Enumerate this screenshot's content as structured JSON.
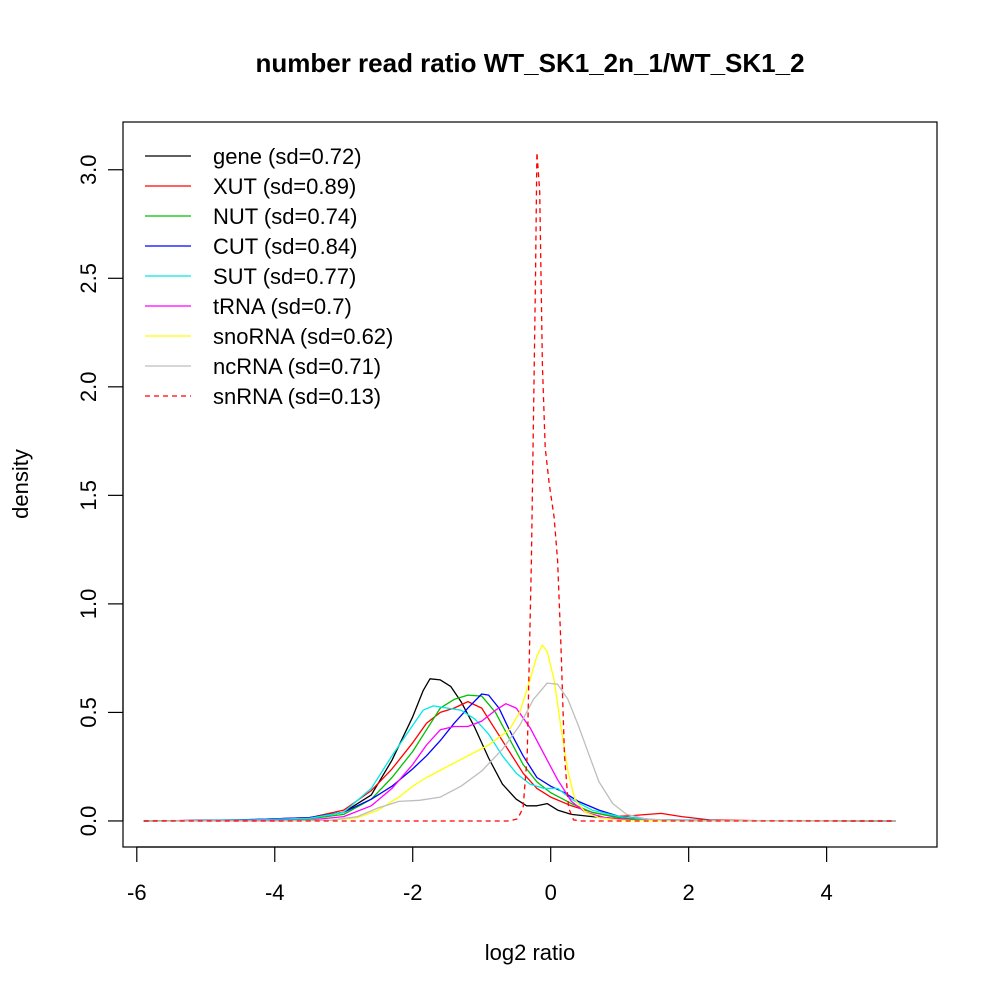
{
  "chart_data": {
    "type": "line",
    "title": "number read ratio WT_SK1_2n_1/WT_SK1_2",
    "xlabel": "log2 ratio",
    "ylabel": "density",
    "xlim": [
      -6.2,
      5.6
    ],
    "ylim": [
      -0.12,
      3.22
    ],
    "x_ticks": [
      -6,
      -4,
      -2,
      0,
      2,
      4
    ],
    "y_ticks": [
      0.0,
      0.5,
      1.0,
      1.5,
      2.0,
      2.5,
      3.0
    ],
    "x_tick_labels": [
      "-6",
      "-4",
      "-2",
      "0",
      "2",
      "4"
    ],
    "y_tick_labels": [
      "0.0",
      "0.5",
      "1.0",
      "1.5",
      "2.0",
      "2.5",
      "3.0"
    ],
    "legend_position": "top-left",
    "grid": false,
    "series": [
      {
        "name": "gene (sd=0.72)",
        "color": "#000000",
        "dash": false,
        "points": [
          [
            -5.9,
            0
          ],
          [
            -4.5,
            0.004
          ],
          [
            -3.5,
            0.015
          ],
          [
            -3.0,
            0.04
          ],
          [
            -2.6,
            0.12
          ],
          [
            -2.3,
            0.28
          ],
          [
            -2.0,
            0.48
          ],
          [
            -1.85,
            0.6
          ],
          [
            -1.75,
            0.655
          ],
          [
            -1.6,
            0.65
          ],
          [
            -1.45,
            0.62
          ],
          [
            -1.3,
            0.55
          ],
          [
            -1.1,
            0.43
          ],
          [
            -0.9,
            0.29
          ],
          [
            -0.7,
            0.17
          ],
          [
            -0.5,
            0.1
          ],
          [
            -0.35,
            0.07
          ],
          [
            -0.2,
            0.07
          ],
          [
            -0.05,
            0.08
          ],
          [
            0.1,
            0.05
          ],
          [
            0.3,
            0.03
          ],
          [
            0.6,
            0.02
          ],
          [
            1.0,
            0.01
          ],
          [
            1.5,
            0.004
          ],
          [
            2.5,
            0.001
          ],
          [
            5.0,
            0
          ]
        ]
      },
      {
        "name": "XUT (sd=0.89)",
        "color": "#ff0000",
        "dash": false,
        "points": [
          [
            -5.9,
            0
          ],
          [
            -4.5,
            0.005
          ],
          [
            -3.5,
            0.015
          ],
          [
            -3.0,
            0.05
          ],
          [
            -2.6,
            0.14
          ],
          [
            -2.3,
            0.24
          ],
          [
            -2.0,
            0.36
          ],
          [
            -1.8,
            0.45
          ],
          [
            -1.6,
            0.5
          ],
          [
            -1.4,
            0.52
          ],
          [
            -1.2,
            0.55
          ],
          [
            -1.0,
            0.52
          ],
          [
            -0.8,
            0.42
          ],
          [
            -0.6,
            0.32
          ],
          [
            -0.4,
            0.22
          ],
          [
            -0.2,
            0.15
          ],
          [
            0.0,
            0.11
          ],
          [
            0.3,
            0.07
          ],
          [
            0.6,
            0.04
          ],
          [
            0.9,
            0.02
          ],
          [
            1.2,
            0.025
          ],
          [
            1.6,
            0.035
          ],
          [
            1.9,
            0.02
          ],
          [
            2.3,
            0.005
          ],
          [
            3.0,
            0.001
          ],
          [
            5.0,
            0
          ]
        ]
      },
      {
        "name": "NUT (sd=0.74)",
        "color": "#00c000",
        "dash": false,
        "points": [
          [
            -5.9,
            0
          ],
          [
            -4.5,
            0.003
          ],
          [
            -3.5,
            0.01
          ],
          [
            -3.0,
            0.03
          ],
          [
            -2.6,
            0.1
          ],
          [
            -2.3,
            0.2
          ],
          [
            -2.0,
            0.32
          ],
          [
            -1.8,
            0.42
          ],
          [
            -1.6,
            0.52
          ],
          [
            -1.4,
            0.56
          ],
          [
            -1.2,
            0.58
          ],
          [
            -1.0,
            0.575
          ],
          [
            -0.8,
            0.5
          ],
          [
            -0.6,
            0.38
          ],
          [
            -0.4,
            0.26
          ],
          [
            -0.2,
            0.18
          ],
          [
            0.0,
            0.13
          ],
          [
            0.3,
            0.08
          ],
          [
            0.6,
            0.04
          ],
          [
            1.0,
            0.015
          ],
          [
            1.5,
            0.005
          ],
          [
            2.5,
            0.001
          ],
          [
            5.0,
            0
          ]
        ]
      },
      {
        "name": "CUT (sd=0.84)",
        "color": "#0000ff",
        "dash": false,
        "points": [
          [
            -5.9,
            0
          ],
          [
            -4.5,
            0.005
          ],
          [
            -3.5,
            0.015
          ],
          [
            -3.0,
            0.04
          ],
          [
            -2.6,
            0.1
          ],
          [
            -2.3,
            0.16
          ],
          [
            -2.0,
            0.24
          ],
          [
            -1.8,
            0.3
          ],
          [
            -1.6,
            0.37
          ],
          [
            -1.4,
            0.45
          ],
          [
            -1.2,
            0.52
          ],
          [
            -1.0,
            0.585
          ],
          [
            -0.9,
            0.58
          ],
          [
            -0.75,
            0.52
          ],
          [
            -0.6,
            0.42
          ],
          [
            -0.4,
            0.3
          ],
          [
            -0.2,
            0.2
          ],
          [
            0.0,
            0.16
          ],
          [
            0.2,
            0.13
          ],
          [
            0.4,
            0.09
          ],
          [
            0.7,
            0.05
          ],
          [
            1.0,
            0.02
          ],
          [
            1.5,
            0.006
          ],
          [
            2.5,
            0.001
          ],
          [
            5.0,
            0
          ]
        ]
      },
      {
        "name": "SUT (sd=0.77)",
        "color": "#00e8e8",
        "dash": false,
        "points": [
          [
            -5.9,
            0
          ],
          [
            -4.5,
            0.004
          ],
          [
            -3.5,
            0.012
          ],
          [
            -3.0,
            0.04
          ],
          [
            -2.6,
            0.15
          ],
          [
            -2.3,
            0.3
          ],
          [
            -2.0,
            0.44
          ],
          [
            -1.85,
            0.51
          ],
          [
            -1.7,
            0.53
          ],
          [
            -1.5,
            0.52
          ],
          [
            -1.3,
            0.51
          ],
          [
            -1.1,
            0.47
          ],
          [
            -0.9,
            0.4
          ],
          [
            -0.7,
            0.3
          ],
          [
            -0.5,
            0.22
          ],
          [
            -0.3,
            0.17
          ],
          [
            -0.1,
            0.15
          ],
          [
            0.1,
            0.15
          ],
          [
            0.3,
            0.1
          ],
          [
            0.6,
            0.05
          ],
          [
            1.0,
            0.02
          ],
          [
            1.5,
            0.005
          ],
          [
            2.5,
            0.001
          ],
          [
            5.0,
            0
          ]
        ]
      },
      {
        "name": "tRNA (sd=0.7)",
        "color": "#ff00ff",
        "dash": false,
        "points": [
          [
            -5.9,
            0
          ],
          [
            -4.5,
            0.001
          ],
          [
            -3.5,
            0.004
          ],
          [
            -3.0,
            0.02
          ],
          [
            -2.6,
            0.07
          ],
          [
            -2.3,
            0.15
          ],
          [
            -2.0,
            0.26
          ],
          [
            -1.8,
            0.35
          ],
          [
            -1.6,
            0.42
          ],
          [
            -1.4,
            0.435
          ],
          [
            -1.2,
            0.435
          ],
          [
            -1.0,
            0.46
          ],
          [
            -0.8,
            0.51
          ],
          [
            -0.65,
            0.54
          ],
          [
            -0.5,
            0.52
          ],
          [
            -0.3,
            0.43
          ],
          [
            -0.1,
            0.31
          ],
          [
            0.1,
            0.19
          ],
          [
            0.3,
            0.09
          ],
          [
            0.5,
            0.04
          ],
          [
            0.8,
            0.015
          ],
          [
            1.2,
            0.004
          ],
          [
            2.0,
            0.001
          ],
          [
            5.0,
            0
          ]
        ]
      },
      {
        "name": "snoRNA (sd=0.62)",
        "color": "#ffff00",
        "dash": false,
        "points": [
          [
            -5.9,
            0
          ],
          [
            -4.0,
            0
          ],
          [
            -3.2,
            0.003
          ],
          [
            -2.8,
            0.015
          ],
          [
            -2.5,
            0.05
          ],
          [
            -2.2,
            0.11
          ],
          [
            -2.0,
            0.16
          ],
          [
            -1.8,
            0.2
          ],
          [
            -1.5,
            0.25
          ],
          [
            -1.2,
            0.3
          ],
          [
            -0.9,
            0.35
          ],
          [
            -0.6,
            0.42
          ],
          [
            -0.45,
            0.5
          ],
          [
            -0.3,
            0.65
          ],
          [
            -0.2,
            0.76
          ],
          [
            -0.12,
            0.81
          ],
          [
            -0.05,
            0.78
          ],
          [
            0.05,
            0.65
          ],
          [
            0.15,
            0.43
          ],
          [
            0.25,
            0.23
          ],
          [
            0.35,
            0.1
          ],
          [
            0.5,
            0.04
          ],
          [
            0.7,
            0.015
          ],
          [
            1.0,
            0.004
          ],
          [
            1.5,
            0.001
          ],
          [
            5.0,
            0
          ]
        ]
      },
      {
        "name": "ncRNA (sd=0.71)",
        "color": "#bebebe",
        "dash": false,
        "points": [
          [
            -5.9,
            0
          ],
          [
            -4.0,
            0
          ],
          [
            -3.2,
            0.003
          ],
          [
            -2.8,
            0.02
          ],
          [
            -2.5,
            0.06
          ],
          [
            -2.2,
            0.09
          ],
          [
            -1.9,
            0.095
          ],
          [
            -1.6,
            0.11
          ],
          [
            -1.3,
            0.16
          ],
          [
            -1.0,
            0.23
          ],
          [
            -0.7,
            0.33
          ],
          [
            -0.45,
            0.44
          ],
          [
            -0.25,
            0.56
          ],
          [
            -0.05,
            0.635
          ],
          [
            0.1,
            0.63
          ],
          [
            0.25,
            0.56
          ],
          [
            0.4,
            0.44
          ],
          [
            0.55,
            0.31
          ],
          [
            0.7,
            0.18
          ],
          [
            0.9,
            0.08
          ],
          [
            1.1,
            0.03
          ],
          [
            1.4,
            0.008
          ],
          [
            2.0,
            0.001
          ],
          [
            5.0,
            0
          ]
        ]
      },
      {
        "name": "snRNA (sd=0.13)",
        "color": "#ff0000",
        "dash": true,
        "points": [
          [
            -5.9,
            0
          ],
          [
            -0.6,
            0
          ],
          [
            -0.48,
            0.01
          ],
          [
            -0.4,
            0.06
          ],
          [
            -0.34,
            0.3
          ],
          [
            -0.28,
            1.2
          ],
          [
            -0.22,
            2.5
          ],
          [
            -0.2,
            3.08
          ],
          [
            -0.16,
            2.9
          ],
          [
            -0.12,
            2.1
          ],
          [
            -0.08,
            1.72
          ],
          [
            -0.02,
            1.55
          ],
          [
            0.05,
            1.4
          ],
          [
            0.1,
            1.2
          ],
          [
            0.15,
            0.8
          ],
          [
            0.2,
            0.3
          ],
          [
            0.26,
            0.06
          ],
          [
            0.33,
            0.005
          ],
          [
            0.45,
            0
          ],
          [
            5.0,
            0
          ]
        ]
      }
    ]
  }
}
